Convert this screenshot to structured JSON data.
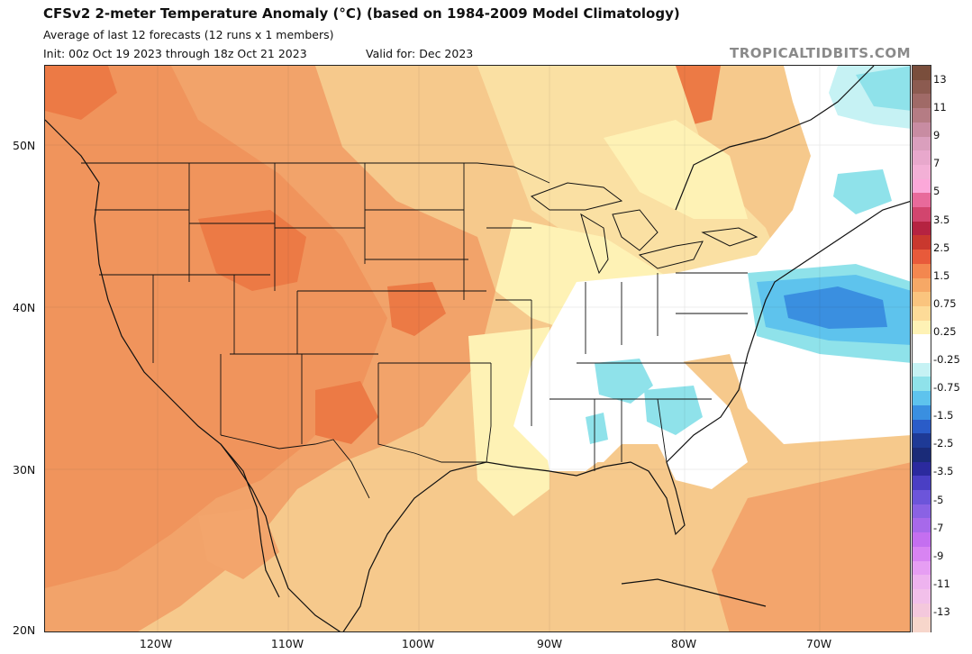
{
  "header": {
    "title": "CFSv2 2-meter Temperature Anomaly (°C) (based on 1984-2009 Model Climatology)",
    "subtitle": "Average of last 12 forecasts (12 runs x 1 members)",
    "init": "Init: 00z Oct 19 2023 through 18z Oct 21 2023",
    "valid": "Valid for: Dec 2023",
    "credit": "TROPICALTIDBITS.COM"
  },
  "map": {
    "lat_labels": [
      "50N",
      "40N",
      "30N",
      "20N"
    ],
    "lon_labels": [
      "120W",
      "110W",
      "100W",
      "90W",
      "80W",
      "70W"
    ]
  },
  "colorbar": {
    "labels": [
      "13",
      "11",
      "9",
      "7",
      "5",
      "3.5",
      "2.5",
      "1.5",
      "0.75",
      "0.25",
      "-0.25",
      "-0.75",
      "-1.5",
      "-2.5",
      "-3.5",
      "-5",
      "-7",
      "-9",
      "-11",
      "-13"
    ],
    "colors": [
      "#7a4e3c",
      "#8c5b50",
      "#a06a67",
      "#b57c84",
      "#c88ca2",
      "#da9fbd",
      "#e8a8cc",
      "#f3b0d6",
      "#fca8d9",
      "#e86a9b",
      "#d2456e",
      "#b52341",
      "#c9382e",
      "#e85a3a",
      "#f3874f",
      "#f6a866",
      "#fac47e",
      "#fddb98",
      "#fef2b5",
      "#ffffff",
      "#ffffff",
      "#c6f2f4",
      "#8fe2ea",
      "#5ec3ed",
      "#3a8fe0",
      "#2a5cc8",
      "#1e3a96",
      "#1a2b78",
      "#2b2a9e",
      "#4a3fc4",
      "#6c55da",
      "#8a62e4",
      "#a769ea",
      "#c46ff0",
      "#d884f2",
      "#e69ef3",
      "#eeb3ef",
      "#f2c0ea",
      "#f4c8dc",
      "#f7d6cb"
    ]
  }
}
